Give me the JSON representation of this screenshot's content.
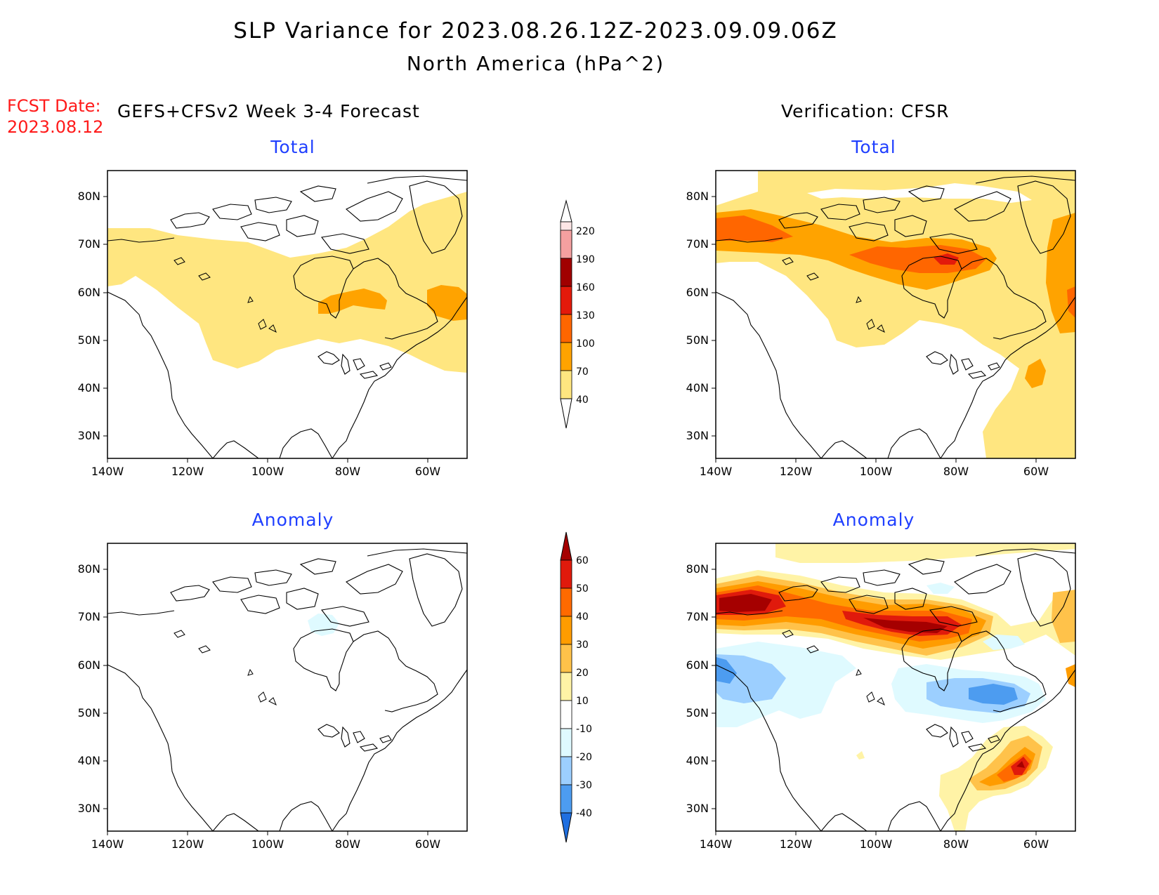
{
  "title": {
    "line1": "SLP Variance for 2023.08.26.12Z-2023.09.09.06Z",
    "line2": "North America (hPa^2)"
  },
  "fcst_date": {
    "label": "FCST Date:",
    "value": "2023.08.12"
  },
  "columns": {
    "left": "GEFS+CFSv2 Week 3-4 Forecast",
    "right": "Verification: CFSR"
  },
  "panels": {
    "top_left": "Total",
    "top_right": "Total",
    "bottom_left": "Anomaly",
    "bottom_right": "Anomaly"
  },
  "axes": {
    "lat_labels": [
      "80N",
      "70N",
      "60N",
      "50N",
      "40N",
      "30N"
    ],
    "lon_labels": [
      "140W",
      "120W",
      "100W",
      "80W",
      "60W"
    ]
  },
  "total_colorbar": {
    "levels": [
      "220",
      "190",
      "160",
      "130",
      "100",
      "70",
      "40"
    ],
    "colors": [
      "#fde6e6",
      "#f4a0a0",
      "#a00000",
      "#e31a0b",
      "#ff6600",
      "#ffa300",
      "#ffe680"
    ]
  },
  "anomaly_colorbar": {
    "levels": [
      "60",
      "50",
      "40",
      "30",
      "20",
      "10",
      "-10",
      "-20",
      "-30",
      "-40"
    ],
    "colors": [
      "#a50000",
      "#e01a0c",
      "#ff6a00",
      "#ff9c00",
      "#ffc24a",
      "#fff3a6",
      "#ffffff",
      "#dffaff",
      "#9ccfff",
      "#4d9cf0",
      "#1f6fe0"
    ]
  },
  "colors": {
    "title_red": "#ff1a1a",
    "panel_title_blue": "#1f3fff"
  }
}
